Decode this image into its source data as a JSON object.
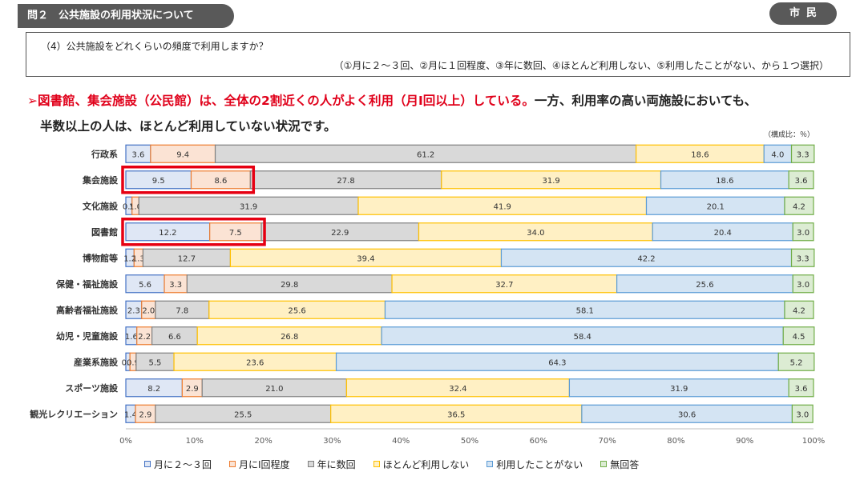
{
  "header": {
    "section_label": "問２　公共施設の利用状況について",
    "tag": "市民"
  },
  "question": {
    "text": "（4）公共施設をどれくらいの頻度で利用しますか？",
    "options": "（①月に２～３回、②月に１回程度、③年に数回、④ほとんど利用しない、⑤利用したことがない、から１つ選択）"
  },
  "summary": {
    "mark": "➢",
    "red": "図書館、集会施設（公民館）は、全体の2割近くの人がよく利用（月Ⅰ回以上）している。",
    "black": "一方、利用率の高い両施設においても、",
    "line2": "半数以上の人は、ほとんど利用していない状況です。"
  },
  "unit_note": "（構成比：％）",
  "colors": {
    "series": [
      "#4472c4",
      "#ed7d31",
      "#808080",
      "#ffc000",
      "#5b9bd5",
      "#70ad47"
    ],
    "fill_light": [
      "#dfe7f5",
      "#fbe3d4",
      "#d9d9d9",
      "#fff0c4",
      "#d4e4f3",
      "#dcecd3"
    ],
    "highlight": "#e60012"
  },
  "chart_data": {
    "type": "bar",
    "orientation": "horizontal",
    "stacked_percent": true,
    "categories": [
      "行政系",
      "集会施設",
      "文化施設",
      "図書館",
      "博物館等",
      "保健・福祉施設",
      "高齢者福祉施設",
      "幼児・児童施設",
      "産業系施設",
      "スポーツ施設",
      "観光レクリエーション"
    ],
    "series": [
      {
        "name": "月に２～３回",
        "values": [
          3.6,
          9.5,
          0.9,
          12.2,
          1.2,
          5.6,
          2.3,
          1.6,
          0.6,
          8.2,
          1.4
        ]
      },
      {
        "name": "月にⅠ回程度",
        "values": [
          9.4,
          8.6,
          1.0,
          7.5,
          1.3,
          3.3,
          2.0,
          2.2,
          0.9,
          2.9,
          2.9
        ]
      },
      {
        "name": "年に数回",
        "values": [
          61.2,
          27.8,
          31.9,
          22.9,
          12.7,
          29.8,
          7.8,
          6.6,
          5.5,
          21.0,
          25.5
        ]
      },
      {
        "name": "ほとんど利用しない",
        "values": [
          18.6,
          31.9,
          41.9,
          34.0,
          39.4,
          32.7,
          25.6,
          26.8,
          23.6,
          32.4,
          36.5
        ]
      },
      {
        "name": "利用したことがない",
        "values": [
          4.0,
          18.6,
          20.1,
          20.4,
          42.2,
          25.6,
          58.1,
          58.4,
          64.3,
          31.9,
          30.6
        ]
      },
      {
        "name": "無回答",
        "values": [
          3.3,
          3.6,
          4.2,
          3.0,
          3.3,
          3.0,
          4.2,
          4.5,
          5.2,
          3.6,
          3.0
        ]
      }
    ],
    "data_label_text": [
      [
        "3.6",
        "9.4",
        "61.2",
        "18.6",
        "4.0",
        "3.3"
      ],
      [
        "9.5",
        "8.6",
        "27.8",
        "31.9",
        "18.6",
        "3.6"
      ],
      [
        "0.9",
        "1.0",
        "31.9",
        "41.9",
        "20.1",
        "4.2"
      ],
      [
        "12.2",
        "7.5",
        "22.9",
        "34.0",
        "20.4",
        "3.0"
      ],
      [
        "1.2",
        "1.3",
        "12.7",
        "39.4",
        "42.2",
        "3.3"
      ],
      [
        "5.6",
        "3.3",
        "29.8",
        "32.7",
        "25.6",
        "3.0"
      ],
      [
        "2.3",
        "2.0",
        "7.8",
        "25.6",
        "58.1",
        "4.2"
      ],
      [
        "1.6",
        "2.2",
        "6.6",
        "26.8",
        "58.4",
        "4.5"
      ],
      [
        "0.6",
        "0.9",
        "5.5",
        "23.6",
        "64.3",
        "5.2"
      ],
      [
        "8.2",
        "2.9",
        "21.0",
        "32.4",
        "31.9",
        "3.6"
      ],
      [
        "1.4",
        "2.9",
        "25.5",
        "36.5",
        "30.6",
        "3.0"
      ]
    ],
    "highlighted": [
      {
        "category": "集会施設",
        "series": [
          "月に２～３回",
          "月にⅠ回程度"
        ]
      },
      {
        "category": "図書館",
        "series": [
          "月に２～３回",
          "月にⅠ回程度"
        ]
      }
    ],
    "x_ticks": [
      "0%",
      "10%",
      "20%",
      "30%",
      "40%",
      "50%",
      "60%",
      "70%",
      "80%",
      "90%",
      "100%"
    ],
    "xlim": [
      0,
      100
    ],
    "grid": false,
    "legend_position": "bottom"
  }
}
